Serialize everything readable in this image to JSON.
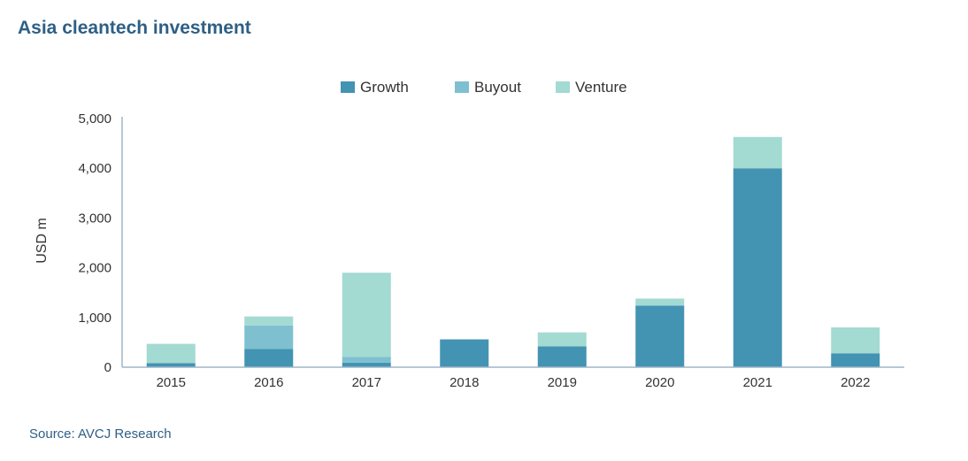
{
  "chart_data": {
    "type": "bar",
    "stacked": true,
    "title": "Asia cleantech investment",
    "ylabel": "USD m",
    "xlabel": "",
    "ylim": [
      0,
      5000
    ],
    "yticks": [
      "0",
      "1,000",
      "2,000",
      "3,000",
      "4,000",
      "5,000"
    ],
    "categories": [
      "2015",
      "2016",
      "2017",
      "2018",
      "2019",
      "2020",
      "2021",
      "2022"
    ],
    "legend_position": "top-center",
    "grid": false,
    "series": [
      {
        "name": "Growth",
        "color": "#4393b3",
        "values": [
          80,
          370,
          90,
          560,
          420,
          1240,
          4000,
          280
        ]
      },
      {
        "name": "Buyout",
        "color": "#7fc0d0",
        "values": [
          0,
          470,
          120,
          0,
          0,
          0,
          0,
          0
        ]
      },
      {
        "name": "Venture",
        "color": "#a3dad2",
        "values": [
          390,
          180,
          1690,
          0,
          280,
          140,
          630,
          520
        ]
      }
    ]
  },
  "source": "Source: AVCJ Research"
}
